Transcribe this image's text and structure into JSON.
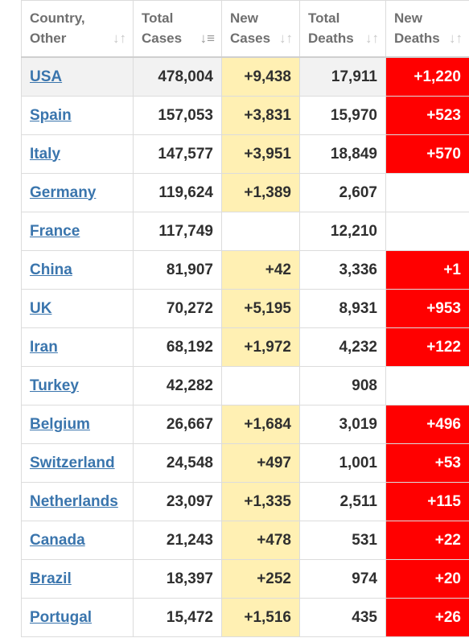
{
  "headers": [
    {
      "line1": "Country,",
      "line2": "Other",
      "active": false
    },
    {
      "line1": "Total",
      "line2": "Cases",
      "active": true
    },
    {
      "line1": "New",
      "line2": "Cases",
      "active": false
    },
    {
      "line1": "Total",
      "line2": "Deaths",
      "active": false
    },
    {
      "line1": "New",
      "line2": "Deaths",
      "active": false
    }
  ],
  "icons": {
    "sort": "sort-arrows-icon",
    "sort_active": "sort-descending-icon"
  },
  "colors": {
    "new_cases_bg": "#fff0b3",
    "new_deaths_bg": "#ff0000",
    "link": "#3a75ad",
    "highlight_row": "#f2f2f2"
  },
  "rows": [
    {
      "country": "USA",
      "total_cases": "478,004",
      "new_cases": "+9,438",
      "total_deaths": "17,911",
      "new_deaths": "+1,220"
    },
    {
      "country": "Spain",
      "total_cases": "157,053",
      "new_cases": "+3,831",
      "total_deaths": "15,970",
      "new_deaths": "+523"
    },
    {
      "country": "Italy",
      "total_cases": "147,577",
      "new_cases": "+3,951",
      "total_deaths": "18,849",
      "new_deaths": "+570"
    },
    {
      "country": "Germany",
      "total_cases": "119,624",
      "new_cases": "+1,389",
      "total_deaths": "2,607",
      "new_deaths": ""
    },
    {
      "country": "France",
      "total_cases": "117,749",
      "new_cases": "",
      "total_deaths": "12,210",
      "new_deaths": ""
    },
    {
      "country": "China",
      "total_cases": "81,907",
      "new_cases": "+42",
      "total_deaths": "3,336",
      "new_deaths": "+1"
    },
    {
      "country": "UK",
      "total_cases": "70,272",
      "new_cases": "+5,195",
      "total_deaths": "8,931",
      "new_deaths": "+953"
    },
    {
      "country": "Iran",
      "total_cases": "68,192",
      "new_cases": "+1,972",
      "total_deaths": "4,232",
      "new_deaths": "+122"
    },
    {
      "country": "Turkey",
      "total_cases": "42,282",
      "new_cases": "",
      "total_deaths": "908",
      "new_deaths": ""
    },
    {
      "country": "Belgium",
      "total_cases": "26,667",
      "new_cases": "+1,684",
      "total_deaths": "3,019",
      "new_deaths": "+496"
    },
    {
      "country": "Switzerland",
      "total_cases": "24,548",
      "new_cases": "+497",
      "total_deaths": "1,001",
      "new_deaths": "+53"
    },
    {
      "country": "Netherlands",
      "total_cases": "23,097",
      "new_cases": "+1,335",
      "total_deaths": "2,511",
      "new_deaths": "+115"
    },
    {
      "country": "Canada",
      "total_cases": "21,243",
      "new_cases": "+478",
      "total_deaths": "531",
      "new_deaths": "+22"
    },
    {
      "country": "Brazil",
      "total_cases": "18,397",
      "new_cases": "+252",
      "total_deaths": "974",
      "new_deaths": "+20"
    },
    {
      "country": "Portugal",
      "total_cases": "15,472",
      "new_cases": "+1,516",
      "total_deaths": "435",
      "new_deaths": "+26"
    }
  ]
}
